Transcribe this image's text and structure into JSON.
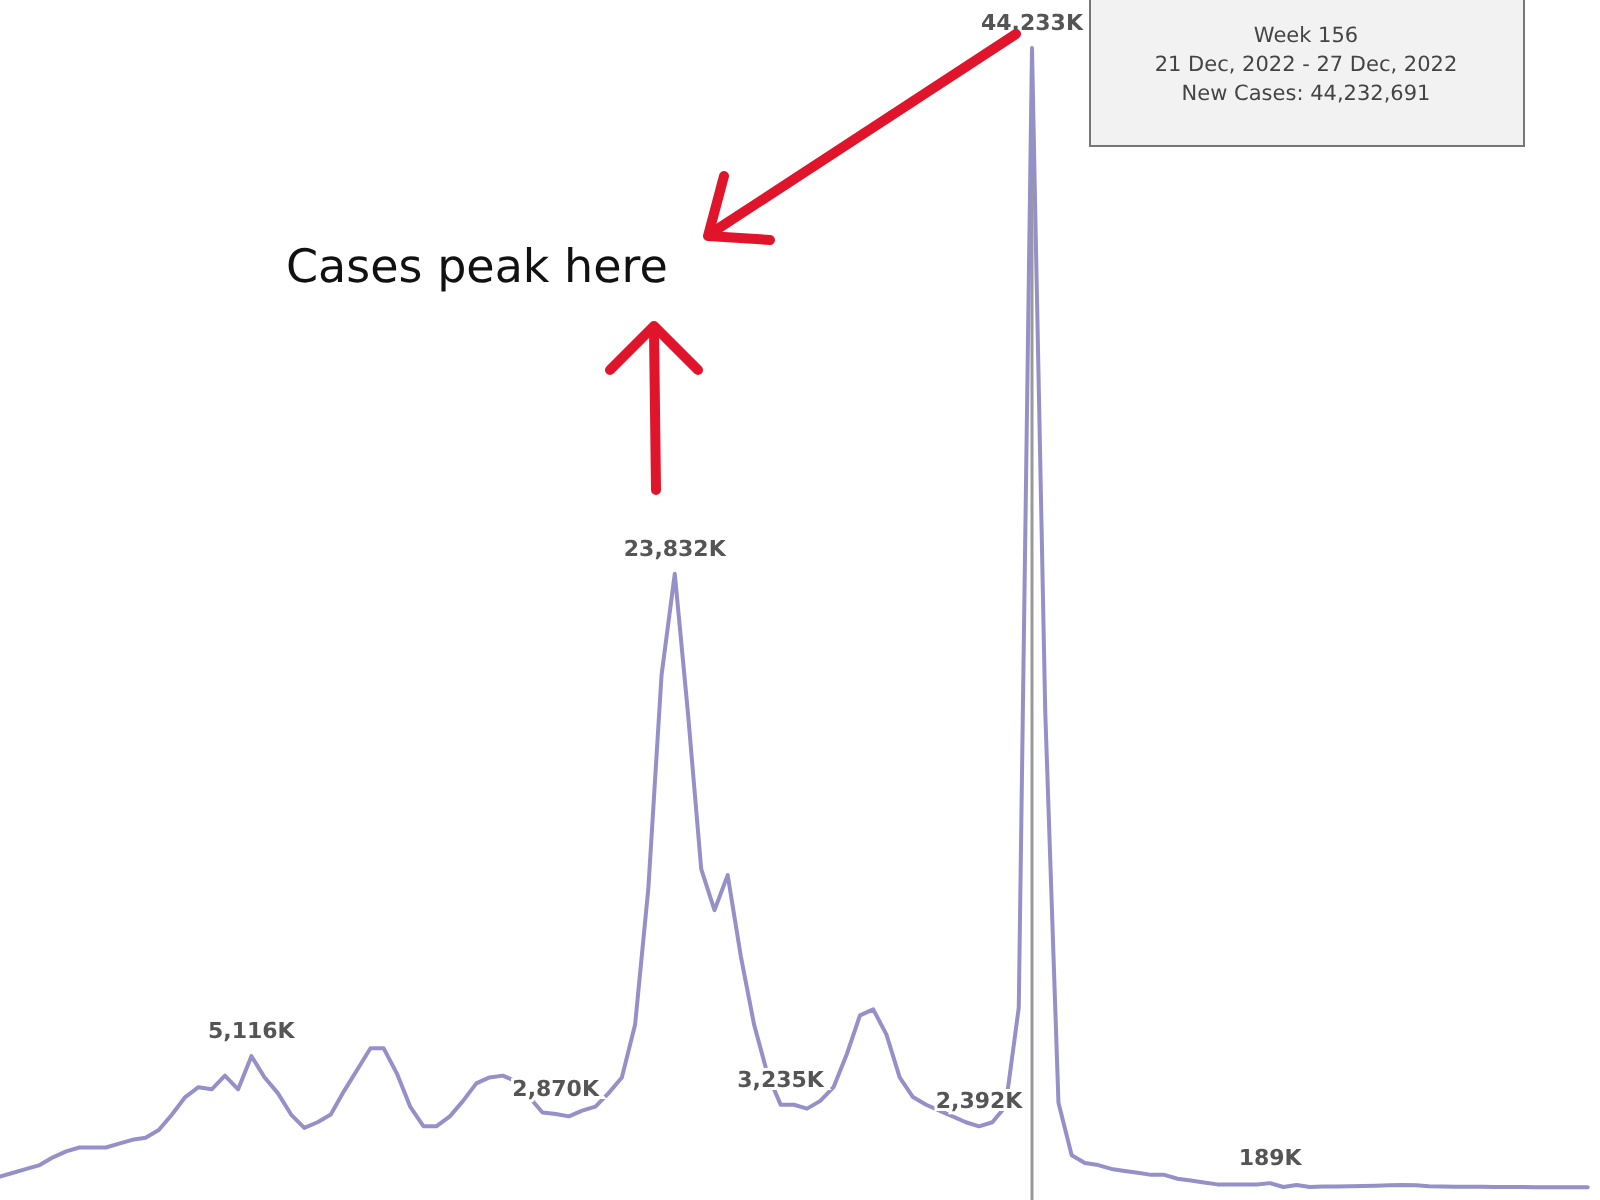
{
  "chart_data": {
    "type": "line",
    "annotations": [
      "Cases peak here",
      "Week 156",
      "21 Dec, 2022 - 27 Dec, 2022",
      "New Cases: 44,232,691"
    ],
    "categories": [
      null,
      null,
      null,
      null,
      null,
      null,
      null,
      null,
      null,
      null,
      null,
      null,
      null,
      null,
      null,
      null,
      null,
      null,
      null,
      null,
      null,
      null,
      null,
      null,
      null,
      null,
      null,
      null,
      null,
      null,
      null,
      null,
      null,
      null,
      null,
      null,
      null,
      null,
      null,
      null,
      null,
      null,
      null,
      null,
      null,
      null,
      null,
      null,
      null,
      null,
      null,
      null,
      null,
      null,
      null,
      null,
      null,
      null,
      null,
      null,
      null,
      null,
      null,
      null,
      null,
      null,
      null,
      null,
      null,
      null,
      null,
      null,
      null,
      null,
      null,
      null,
      null,
      null,
      null,
      null,
      null,
      null,
      null,
      null,
      null,
      null,
      null,
      null,
      null,
      null,
      null,
      null,
      null,
      null,
      null,
      null,
      null,
      null,
      null,
      null,
      null,
      null,
      null,
      null,
      null,
      null,
      null,
      null,
      null,
      null,
      null,
      null,
      null,
      null,
      null,
      null,
      null,
      null,
      null,
      null,
      null
    ],
    "series": [
      {
        "color": "#9590c8",
        "values": [
          440,
          590,
          740,
          890,
          1190,
          1420,
          1570,
          1570,
          1570,
          1720,
          1870,
          1950,
          2250,
          2850,
          3530,
          3910,
          3830,
          4360,
          3830,
          5116,
          4290,
          3680,
          2850,
          2330,
          2550,
          2850,
          3760,
          4590,
          5420,
          5420,
          4440,
          3160,
          2400,
          2400,
          2780,
          3380,
          4060,
          4290,
          4360,
          4140,
          3530,
          2930,
          2870,
          2780,
          3000,
          3160,
          3680,
          4290,
          6330,
          11610,
          19900,
          23832,
          18410,
          12370,
          10780,
          12140,
          8970,
          6330,
          4440,
          3235,
          3230,
          3080,
          3380,
          3910,
          5190,
          6700,
          6930,
          5950,
          4290,
          3530,
          3230,
          3000,
          2780,
          2550,
          2392,
          2550,
          3160,
          7000,
          44233,
          18500,
          3310,
          1270,
          970,
          890,
          740,
          660,
          590,
          510,
          510,
          360,
          290,
          210,
          140,
          140,
          140,
          140,
          189,
          40,
          120,
          40,
          60,
          60,
          70,
          80,
          90,
          110,
          120,
          110,
          70,
          60,
          50,
          50,
          50,
          40,
          40,
          40,
          30,
          30,
          30,
          30,
          30
        ],
        "value_labels": [
          null,
          null,
          null,
          null,
          null,
          null,
          null,
          null,
          null,
          null,
          null,
          null,
          null,
          null,
          null,
          null,
          null,
          null,
          null,
          "5,116K",
          null,
          null,
          null,
          null,
          null,
          null,
          null,
          null,
          null,
          null,
          null,
          null,
          null,
          null,
          null,
          null,
          null,
          null,
          null,
          null,
          null,
          null,
          "2,870K",
          null,
          null,
          null,
          null,
          null,
          null,
          null,
          null,
          "23,832K",
          null,
          null,
          null,
          null,
          null,
          null,
          null,
          "3,235K",
          null,
          null,
          null,
          null,
          null,
          null,
          null,
          null,
          null,
          null,
          null,
          null,
          null,
          null,
          "2,392K",
          null,
          null,
          null,
          "44,233K",
          null,
          null,
          null,
          null,
          null,
          null,
          null,
          null,
          null,
          null,
          null,
          null,
          null,
          null,
          null,
          null,
          null,
          "189K",
          null,
          null,
          null,
          null,
          null,
          null,
          null,
          null,
          null,
          null,
          null,
          null,
          null,
          null,
          null,
          null,
          null,
          null,
          null,
          null,
          null,
          null,
          null,
          null
        ]
      }
    ],
    "marker": "none",
    "line_style": "solid"
  }
}
